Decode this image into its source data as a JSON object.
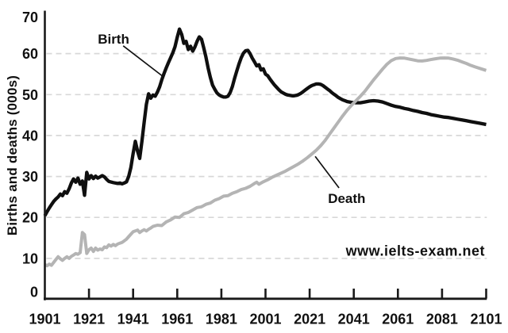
{
  "chart_data": {
    "type": "line",
    "title": "",
    "xlabel": "",
    "ylabel": "Births and deaths (000s)",
    "xlim": [
      1901,
      2101
    ],
    "ylim": [
      0,
      70
    ],
    "x_ticks": [
      1901,
      1921,
      1941,
      1961,
      1981,
      2001,
      2021,
      2041,
      2061,
      2081,
      2101
    ],
    "y_ticks": [
      0,
      10,
      20,
      30,
      40,
      50,
      60,
      70
    ],
    "gridlines_y": [
      10,
      20,
      30,
      40,
      50,
      60
    ],
    "grid_style": "horizontal dashed",
    "legend_position": "inline leader-line annotations",
    "watermark": "www.ielts-exam.net",
    "colors": {
      "birth_line": "#0f0f0f",
      "death_line": "#b4b4b4",
      "grid": "#d8d8d8",
      "axis": "#1a1a1a",
      "watermark": "#eeeeee"
    },
    "annotations": [
      {
        "id": "birth",
        "label": "Birth",
        "year": 1925.0,
        "value": 62.4,
        "leader_from": [
          1936.5,
          61.9
        ],
        "leader_to": [
          1954.1,
          54.6
        ]
      },
      {
        "id": "death",
        "label": "Death",
        "year": 2029.3,
        "value": 23.5,
        "leader_from": [
          2023.5,
          34.9
        ],
        "leader_to": [
          2034.3,
          27.2
        ]
      }
    ],
    "series": [
      {
        "name": "Birth",
        "color": "#0f0f0f",
        "stroke_width": 4.3,
        "points": [
          [
            1901,
            20.4
          ],
          [
            1902,
            21.4
          ],
          [
            1903,
            22.3
          ],
          [
            1904,
            23.1
          ],
          [
            1905,
            23.9
          ],
          [
            1906,
            24.5
          ],
          [
            1907,
            25.0
          ],
          [
            1908,
            25.7
          ],
          [
            1909,
            25.3
          ],
          [
            1910,
            26.3
          ],
          [
            1911,
            25.9
          ],
          [
            1912,
            27.0
          ],
          [
            1913,
            28.4
          ],
          [
            1914,
            29.4
          ],
          [
            1915,
            28.6
          ],
          [
            1916,
            29.6
          ],
          [
            1917,
            28.1
          ],
          [
            1918,
            28.9
          ],
          [
            1919,
            25.4
          ],
          [
            1920,
            31.0
          ],
          [
            1921,
            29.4
          ],
          [
            1922,
            30.2
          ],
          [
            1923,
            29.5
          ],
          [
            1924,
            30.1
          ],
          [
            1925,
            29.6
          ],
          [
            1926,
            29.9
          ],
          [
            1927,
            30.2
          ],
          [
            1928,
            29.9
          ],
          [
            1929,
            29.3
          ],
          [
            1930,
            28.8
          ],
          [
            1932,
            28.5
          ],
          [
            1934,
            28.3
          ],
          [
            1935,
            28.4
          ],
          [
            1936,
            28.2
          ],
          [
            1937,
            28.4
          ],
          [
            1938,
            28.7
          ],
          [
            1939,
            30.0
          ],
          [
            1940,
            32.2
          ],
          [
            1941,
            35.6
          ],
          [
            1942,
            38.6
          ],
          [
            1943,
            36.2
          ],
          [
            1944,
            34.4
          ],
          [
            1945,
            38.6
          ],
          [
            1946,
            43.2
          ],
          [
            1947,
            47.6
          ],
          [
            1948,
            50.2
          ],
          [
            1949,
            49.1
          ],
          [
            1950,
            49.9
          ],
          [
            1951,
            49.6
          ],
          [
            1952,
            50.6
          ],
          [
            1953,
            51.9
          ],
          [
            1954,
            53.6
          ],
          [
            1955,
            55.1
          ],
          [
            1956,
            56.5
          ],
          [
            1957,
            57.8
          ],
          [
            1958,
            59.0
          ],
          [
            1959,
            60.2
          ],
          [
            1960,
            61.7
          ],
          [
            1961,
            64.0
          ],
          [
            1962,
            66.0
          ],
          [
            1963,
            64.7
          ],
          [
            1964,
            62.5
          ],
          [
            1965,
            63.0
          ],
          [
            1966,
            61.0
          ],
          [
            1967,
            61.8
          ],
          [
            1968,
            60.6
          ],
          [
            1969,
            61.6
          ],
          [
            1970,
            63.0
          ],
          [
            1971,
            64.1
          ],
          [
            1972,
            63.5
          ],
          [
            1973,
            61.4
          ],
          [
            1974,
            59.2
          ],
          [
            1975,
            56.5
          ],
          [
            1976,
            54.2
          ],
          [
            1977,
            52.3
          ],
          [
            1978,
            51.3
          ],
          [
            1979,
            50.4
          ],
          [
            1980,
            49.9
          ],
          [
            1981,
            49.6
          ],
          [
            1982,
            49.4
          ],
          [
            1983,
            49.4
          ],
          [
            1984,
            49.6
          ],
          [
            1985,
            50.5
          ],
          [
            1986,
            52.0
          ],
          [
            1987,
            54.0
          ],
          [
            1988,
            55.8
          ],
          [
            1989,
            57.5
          ],
          [
            1990,
            59.0
          ],
          [
            1991,
            60.1
          ],
          [
            1992,
            60.7
          ],
          [
            1993,
            60.8
          ],
          [
            1994,
            60.0
          ],
          [
            1995,
            58.9
          ],
          [
            1996,
            58.0
          ],
          [
            1997,
            57.0
          ],
          [
            1998,
            57.3
          ],
          [
            1999,
            56.0
          ],
          [
            2000,
            56.3
          ],
          [
            2001,
            55.0
          ],
          [
            2002,
            54.6
          ],
          [
            2003,
            53.8
          ],
          [
            2004,
            53.1
          ],
          [
            2005,
            52.4
          ],
          [
            2006,
            51.8
          ],
          [
            2007,
            51.2
          ],
          [
            2008,
            50.7
          ],
          [
            2009,
            50.4
          ],
          [
            2010,
            50.1
          ],
          [
            2011,
            49.9
          ],
          [
            2012,
            49.8
          ],
          [
            2013,
            49.7
          ],
          [
            2014,
            49.7
          ],
          [
            2015,
            49.8
          ],
          [
            2016,
            50.0
          ],
          [
            2017,
            50.3
          ],
          [
            2018,
            50.7
          ],
          [
            2019,
            51.1
          ],
          [
            2020,
            51.5
          ],
          [
            2021,
            51.9
          ],
          [
            2022,
            52.2
          ],
          [
            2023,
            52.4
          ],
          [
            2024,
            52.6
          ],
          [
            2025,
            52.6
          ],
          [
            2026,
            52.5
          ],
          [
            2027,
            52.2
          ],
          [
            2028,
            51.8
          ],
          [
            2029,
            51.4
          ],
          [
            2030,
            51.0
          ],
          [
            2031,
            50.5
          ],
          [
            2032,
            50.1
          ],
          [
            2033,
            49.7
          ],
          [
            2034,
            49.3
          ],
          [
            2035,
            49.0
          ],
          [
            2036,
            48.7
          ],
          [
            2037,
            48.5
          ],
          [
            2038,
            48.3
          ],
          [
            2039,
            48.2
          ],
          [
            2040,
            48.1
          ],
          [
            2042,
            48.0
          ],
          [
            2044,
            48.0
          ],
          [
            2046,
            48.2
          ],
          [
            2048,
            48.4
          ],
          [
            2050,
            48.5
          ],
          [
            2052,
            48.4
          ],
          [
            2054,
            48.2
          ],
          [
            2056,
            47.8
          ],
          [
            2058,
            47.4
          ],
          [
            2060,
            47.1
          ],
          [
            2062,
            46.9
          ],
          [
            2064,
            46.6
          ],
          [
            2066,
            46.4
          ],
          [
            2068,
            46.1
          ],
          [
            2070,
            45.9
          ],
          [
            2072,
            45.6
          ],
          [
            2074,
            45.4
          ],
          [
            2076,
            45.1
          ],
          [
            2078,
            44.9
          ],
          [
            2080,
            44.7
          ],
          [
            2082,
            44.5
          ],
          [
            2084,
            44.4
          ],
          [
            2086,
            44.2
          ],
          [
            2088,
            44.0
          ],
          [
            2090,
            43.8
          ],
          [
            2092,
            43.6
          ],
          [
            2094,
            43.4
          ],
          [
            2096,
            43.2
          ],
          [
            2098,
            43.0
          ],
          [
            2101,
            42.7
          ]
        ]
      },
      {
        "name": "Death",
        "color": "#b4b4b4",
        "stroke_width": 4.0,
        "points": [
          [
            1901,
            8.5
          ],
          [
            1902,
            8.2
          ],
          [
            1903,
            8.6
          ],
          [
            1904,
            8.3
          ],
          [
            1905,
            9.0
          ],
          [
            1906,
            9.7
          ],
          [
            1907,
            10.4
          ],
          [
            1908,
            9.9
          ],
          [
            1909,
            9.5
          ],
          [
            1910,
            10.0
          ],
          [
            1911,
            10.4
          ],
          [
            1912,
            10.0
          ],
          [
            1913,
            10.5
          ],
          [
            1914,
            10.8
          ],
          [
            1915,
            11.2
          ],
          [
            1916,
            11.0
          ],
          [
            1917,
            11.4
          ],
          [
            1918,
            16.3
          ],
          [
            1919,
            15.8
          ],
          [
            1920,
            11.2
          ],
          [
            1921,
            12.1
          ],
          [
            1922,
            12.5
          ],
          [
            1923,
            11.7
          ],
          [
            1924,
            12.5
          ],
          [
            1925,
            12.0
          ],
          [
            1926,
            12.3
          ],
          [
            1927,
            12.1
          ],
          [
            1928,
            12.8
          ],
          [
            1929,
            12.6
          ],
          [
            1930,
            13.3
          ],
          [
            1931,
            13.0
          ],
          [
            1932,
            13.4
          ],
          [
            1933,
            13.1
          ],
          [
            1934,
            13.5
          ],
          [
            1935,
            13.7
          ],
          [
            1936,
            13.9
          ],
          [
            1937,
            14.3
          ],
          [
            1938,
            14.7
          ],
          [
            1939,
            15.3
          ],
          [
            1940,
            15.9
          ],
          [
            1941,
            16.5
          ],
          [
            1942,
            16.7
          ],
          [
            1943,
            16.9
          ],
          [
            1944,
            16.3
          ],
          [
            1945,
            16.7
          ],
          [
            1946,
            17.0
          ],
          [
            1947,
            16.7
          ],
          [
            1948,
            17.1
          ],
          [
            1949,
            17.4
          ],
          [
            1950,
            17.8
          ],
          [
            1952,
            18.1
          ],
          [
            1954,
            18.0
          ],
          [
            1956,
            18.9
          ],
          [
            1958,
            19.4
          ],
          [
            1960,
            20.1
          ],
          [
            1962,
            20.0
          ],
          [
            1964,
            20.9
          ],
          [
            1966,
            21.2
          ],
          [
            1968,
            21.8
          ],
          [
            1970,
            22.4
          ],
          [
            1972,
            22.6
          ],
          [
            1974,
            23.2
          ],
          [
            1976,
            23.5
          ],
          [
            1978,
            24.2
          ],
          [
            1980,
            24.6
          ],
          [
            1982,
            25.2
          ],
          [
            1984,
            25.3
          ],
          [
            1986,
            25.9
          ],
          [
            1988,
            26.3
          ],
          [
            1990,
            26.8
          ],
          [
            1992,
            27.1
          ],
          [
            1994,
            27.6
          ],
          [
            1996,
            28.3
          ],
          [
            1997,
            28.6
          ],
          [
            1998,
            28.1
          ],
          [
            2000,
            28.7
          ],
          [
            2002,
            29.2
          ],
          [
            2004,
            29.8
          ],
          [
            2006,
            30.3
          ],
          [
            2008,
            30.8
          ],
          [
            2010,
            31.3
          ],
          [
            2012,
            31.9
          ],
          [
            2014,
            32.5
          ],
          [
            2016,
            33.1
          ],
          [
            2018,
            33.8
          ],
          [
            2020,
            34.6
          ],
          [
            2022,
            35.5
          ],
          [
            2024,
            36.4
          ],
          [
            2026,
            37.5
          ],
          [
            2028,
            38.8
          ],
          [
            2030,
            40.3
          ],
          [
            2032,
            41.8
          ],
          [
            2034,
            43.3
          ],
          [
            2036,
            44.8
          ],
          [
            2038,
            46.2
          ],
          [
            2040,
            47.4
          ],
          [
            2042,
            48.5
          ],
          [
            2044,
            49.6
          ],
          [
            2046,
            50.8
          ],
          [
            2048,
            52.2
          ],
          [
            2050,
            53.6
          ],
          [
            2052,
            54.9
          ],
          [
            2054,
            56.2
          ],
          [
            2056,
            57.4
          ],
          [
            2058,
            58.3
          ],
          [
            2060,
            58.8
          ],
          [
            2062,
            58.95
          ],
          [
            2064,
            58.9
          ],
          [
            2066,
            58.7
          ],
          [
            2068,
            58.45
          ],
          [
            2070,
            58.25
          ],
          [
            2072,
            58.2
          ],
          [
            2074,
            58.35
          ],
          [
            2076,
            58.55
          ],
          [
            2078,
            58.75
          ],
          [
            2080,
            58.9
          ],
          [
            2082,
            58.95
          ],
          [
            2084,
            58.9
          ],
          [
            2086,
            58.7
          ],
          [
            2088,
            58.4
          ],
          [
            2090,
            58.0
          ],
          [
            2092,
            57.6
          ],
          [
            2094,
            57.15
          ],
          [
            2096,
            56.75
          ],
          [
            2098,
            56.4
          ],
          [
            2101,
            55.9
          ]
        ]
      }
    ]
  }
}
